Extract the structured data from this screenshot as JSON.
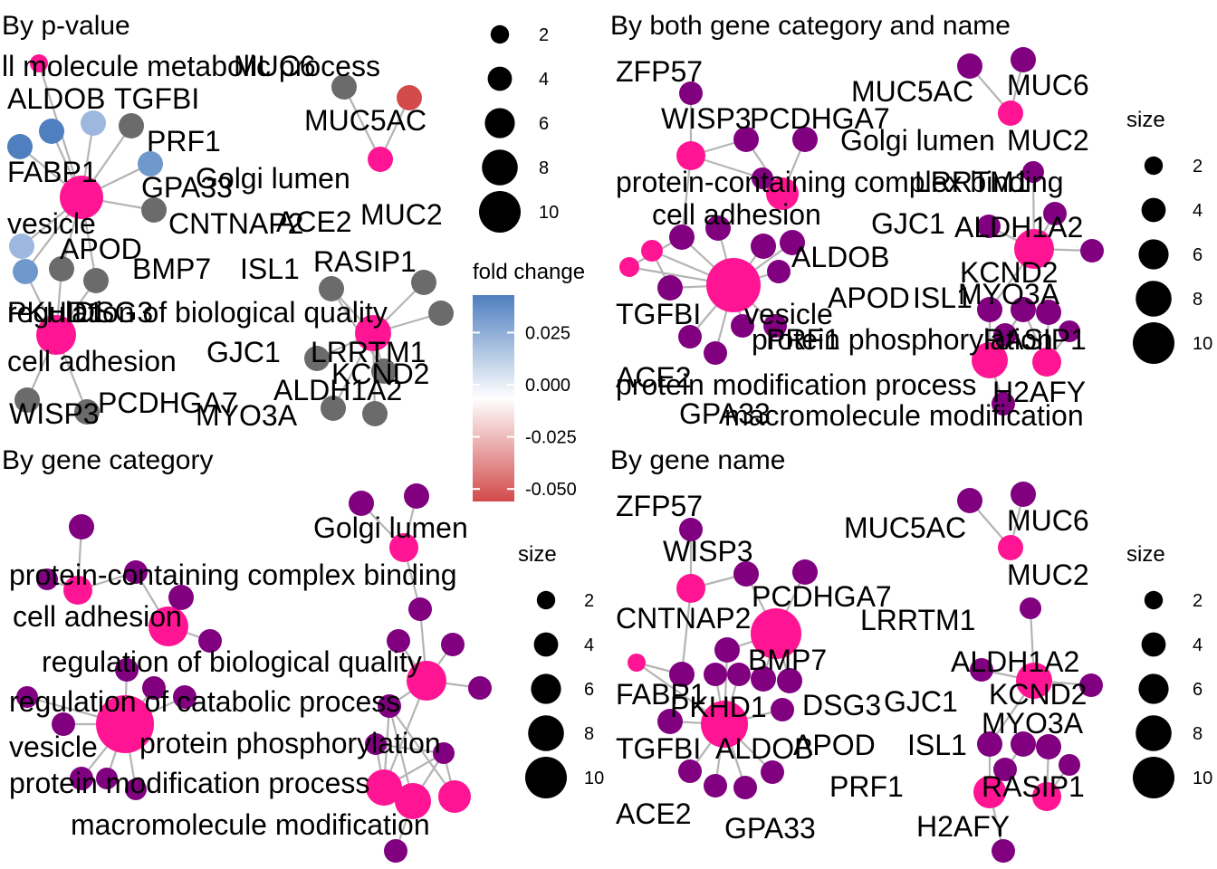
{
  "colors": {
    "term": "#ff1493",
    "gene_category": "#800080",
    "gene_grey": "#6b6b6b",
    "edge": "#b4b4b4",
    "fc_high": "#4f7fbf",
    "fc_mid": "#ffffff",
    "fc_low": "#d24a4a"
  },
  "chart_data": [
    {
      "id": "pvalue",
      "type": "network",
      "title": "By p-value",
      "legends": {
        "size": {
          "title": "",
          "values": [
            2,
            4,
            6,
            8,
            10
          ]
        },
        "fold_change": {
          "title": "fold change",
          "breaks": [
            "0.025",
            "0.000",
            "-0.025",
            "-0.050"
          ],
          "range": [
            -0.056,
            0.043
          ]
        }
      },
      "labels": [
        "ll molecule metabolic process",
        "MUC6",
        "ALDOB",
        "TGFBI",
        "PRF1",
        "MUC5AC",
        "FABP1",
        "GPA33",
        "Golgi lumen",
        "vesicle",
        "CNTNAP2",
        "ACE2",
        "MUC2",
        "APOD",
        "BMP7",
        "ISL1",
        "RASIP1",
        "PKHD1",
        "DSG3",
        "regulation of biological quality",
        "cell adhesion",
        "GJC1",
        "LRRTM1",
        "KCND2",
        "WISP3",
        "PCDHGA7",
        "ALDH1A2",
        "MYO3A"
      ]
    },
    {
      "id": "both",
      "type": "network",
      "title": "By both gene category and name",
      "legends": {
        "size": {
          "title": "size",
          "values": [
            2,
            4,
            6,
            8,
            10
          ]
        }
      },
      "labels": [
        "ZFP57",
        "MUC5AC",
        "MUC6",
        "WISP3",
        "PCDHGA7",
        "Golgi lumen",
        "MUC2",
        "protein-containing complex binding",
        "LRRTM1",
        "cell adhesion",
        "GJC1",
        "ALDH1A2",
        "ALDOB",
        "KCND2",
        "APOD",
        "ISL1",
        "MYO3A",
        "TGFBI",
        "vesicle",
        "protein phosphorylation",
        "PRF1",
        "RASIP1",
        "ACE2",
        "protein modification process",
        "H2AFY",
        "GPA33",
        "macromolecule modification"
      ]
    },
    {
      "id": "category",
      "type": "network",
      "title": "By gene category",
      "legends": {
        "size": {
          "title": "size",
          "values": [
            2,
            4,
            6,
            8,
            10
          ]
        }
      },
      "labels": [
        "Golgi lumen",
        "protein-containing complex binding",
        "cell adhesion",
        "regulation of biological quality",
        "regulation of catabolic process",
        "vesicle",
        "protein phosphorylation",
        "protein modification process",
        "macromolecule modification"
      ]
    },
    {
      "id": "name",
      "type": "network",
      "title": "By gene name",
      "legends": {
        "size": {
          "title": "size",
          "values": [
            2,
            4,
            6,
            8,
            10
          ]
        }
      },
      "labels": [
        "ZFP57",
        "MUC5AC",
        "MUC6",
        "WISP3",
        "MUC2",
        "PCDHGA7",
        "CNTNAP2",
        "LRRTM1",
        "BMP7",
        "ALDH1A2",
        "FABP1",
        "PKHD1",
        "DSG3",
        "GJC1",
        "KCND2",
        "MYO3A",
        "TGFBI",
        "ALDOB",
        "APOD",
        "ISL1",
        "RASIP1",
        "PRF1",
        "ACE2",
        "GPA33",
        "H2AFY"
      ]
    }
  ]
}
